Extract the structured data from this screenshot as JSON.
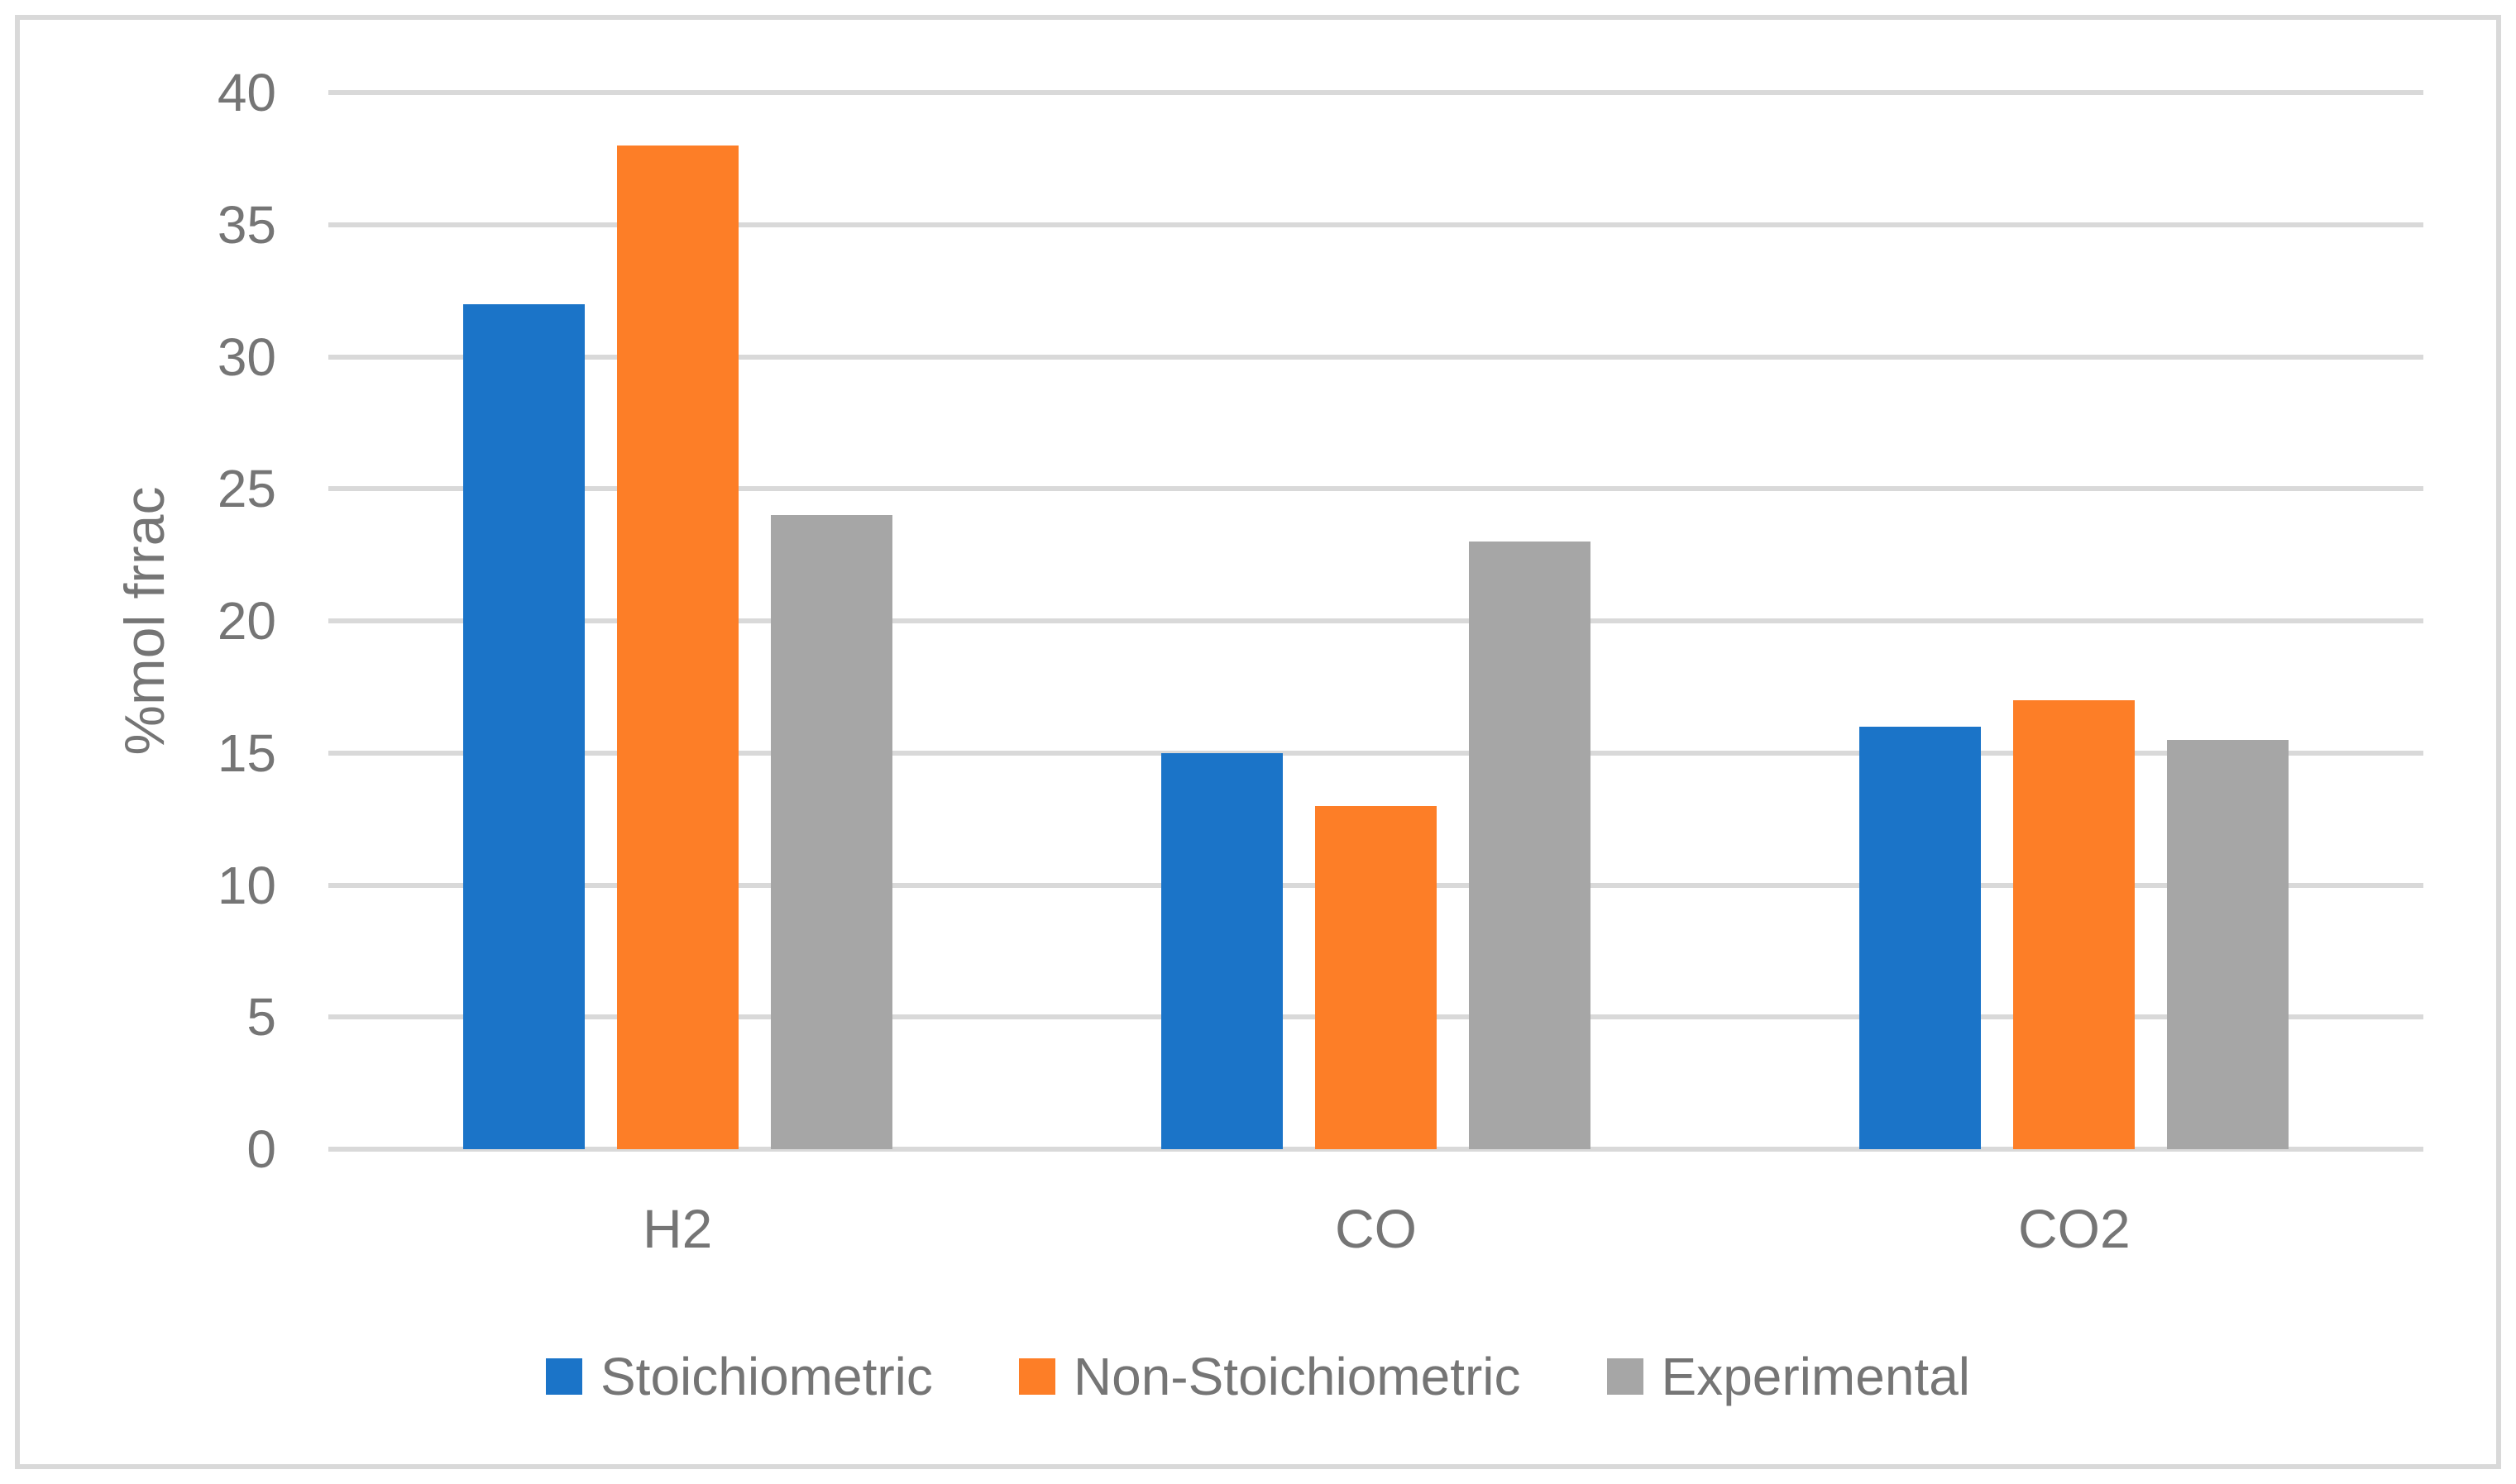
{
  "chart_data": {
    "type": "bar",
    "title": "",
    "xlabel": "",
    "ylabel": "%mol frrac",
    "categories": [
      "H2",
      "CO",
      "CO2"
    ],
    "series": [
      {
        "name": "Stoichiometric",
        "color": "#1B74C8",
        "values": [
          32,
          15,
          16
        ]
      },
      {
        "name": "Non-Stoichiometric",
        "color": "#FD7E27",
        "values": [
          38,
          13,
          17
        ]
      },
      {
        "name": "Experimental",
        "color": "#A6A6A6",
        "values": [
          24,
          23,
          15.5
        ]
      }
    ],
    "ylim": [
      0,
      40
    ],
    "ytick_step": 5,
    "ytick_labels": [
      "0",
      "5",
      "10",
      "15",
      "20",
      "25",
      "30",
      "35",
      "40"
    ],
    "grid": "horizontal",
    "legend_position": "bottom"
  },
  "styles": {
    "gridline_color": "#D9D9D9",
    "axis_line_color": "#D9D9D9",
    "frame_border_color": "#D9D9D9",
    "text_color": "#757575",
    "background_color": "#FFFFFF"
  }
}
